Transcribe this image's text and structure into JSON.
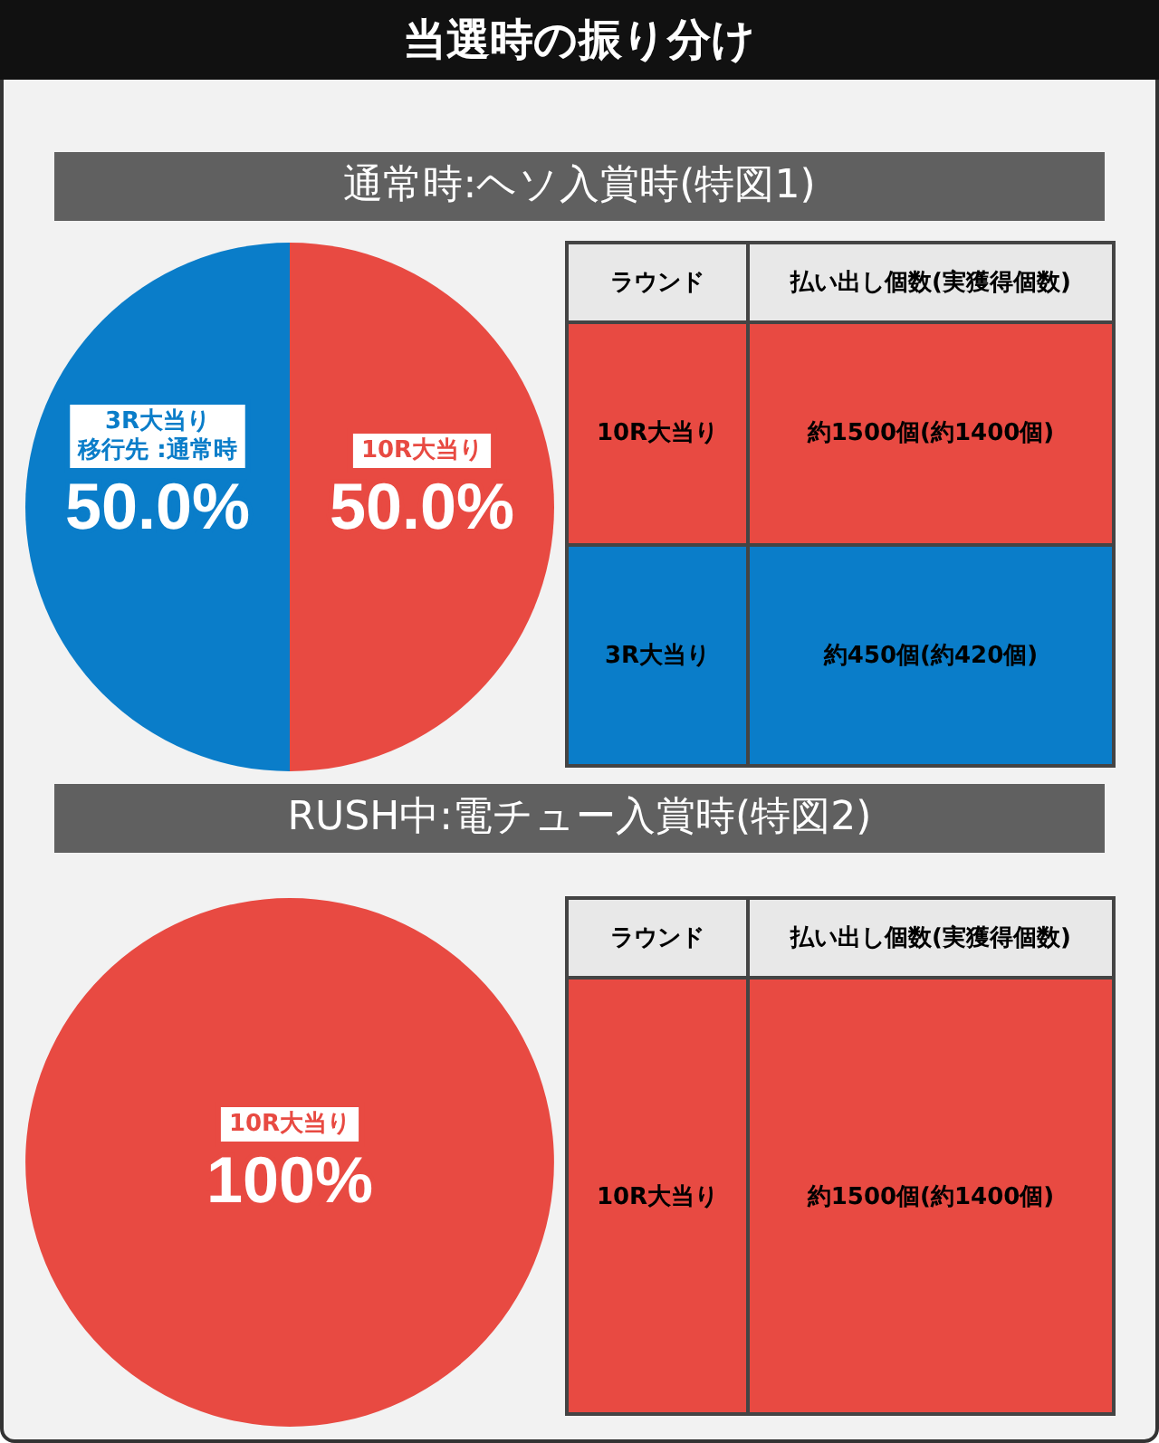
{
  "chart_data": [
    {
      "type": "pie",
      "title": "当選時の振り分け",
      "subtitle": "通常時:ヘソ入賞時(特図1)",
      "categories": [
        "10R大当り",
        "3R大当り"
      ],
      "annotations": [
        {
          "text": "移行先 :通常時",
          "x": "3R大当り"
        }
      ],
      "values": [
        50,
        50
      ],
      "colors": [
        "#e84a42",
        "#0a7dc9"
      ],
      "value_labels": [
        "50.0%",
        "50.0%"
      ],
      "legend": false
    },
    {
      "type": "other",
      "annotations": [
        "ラウンド",
        "払い出し個数(実獲得個数)",
        "10R大当り",
        "約1500個(約1400個)",
        "3R大当り",
        "約450個(約420個)"
      ]
    },
    {
      "type": "pie",
      "title": "RUSH中:電チュー入賞時(特図2)",
      "categories": [
        "10R大当り"
      ],
      "values": [
        100
      ],
      "colors": [
        "#e84a42"
      ],
      "value_labels": [
        "100%"
      ],
      "legend": false
    },
    {
      "type": "other",
      "annotations": [
        "ラウンド",
        "払い出し個数(実獲得個数)",
        "10R大当り",
        "約1500個(約1400個)"
      ]
    }
  ]
}
